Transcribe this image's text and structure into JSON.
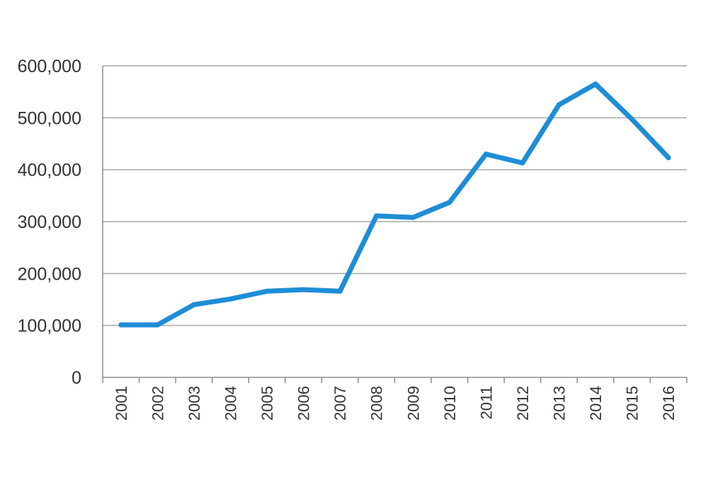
{
  "chart_data": {
    "type": "line",
    "title": "",
    "xlabel": "",
    "ylabel": "",
    "categories": [
      "2001",
      "2002",
      "2003",
      "2004",
      "2005",
      "2006",
      "2007",
      "2008",
      "2009",
      "2010",
      "2011",
      "2012",
      "2013",
      "2014",
      "2015",
      "2016"
    ],
    "series": [
      {
        "values": [
          101000,
          101000,
          140000,
          151000,
          166000,
          169000,
          166000,
          311000,
          308000,
          337000,
          430000,
          413000,
          525000,
          565000,
          497000,
          423000
        ],
        "color": "#1f8dd6"
      }
    ],
    "y_ticks": [
      "0",
      "100,000",
      "200,000",
      "300,000",
      "400,000",
      "500,000",
      "600,000"
    ],
    "ylim": [
      0,
      600000
    ],
    "grid": true,
    "legend": "none"
  }
}
